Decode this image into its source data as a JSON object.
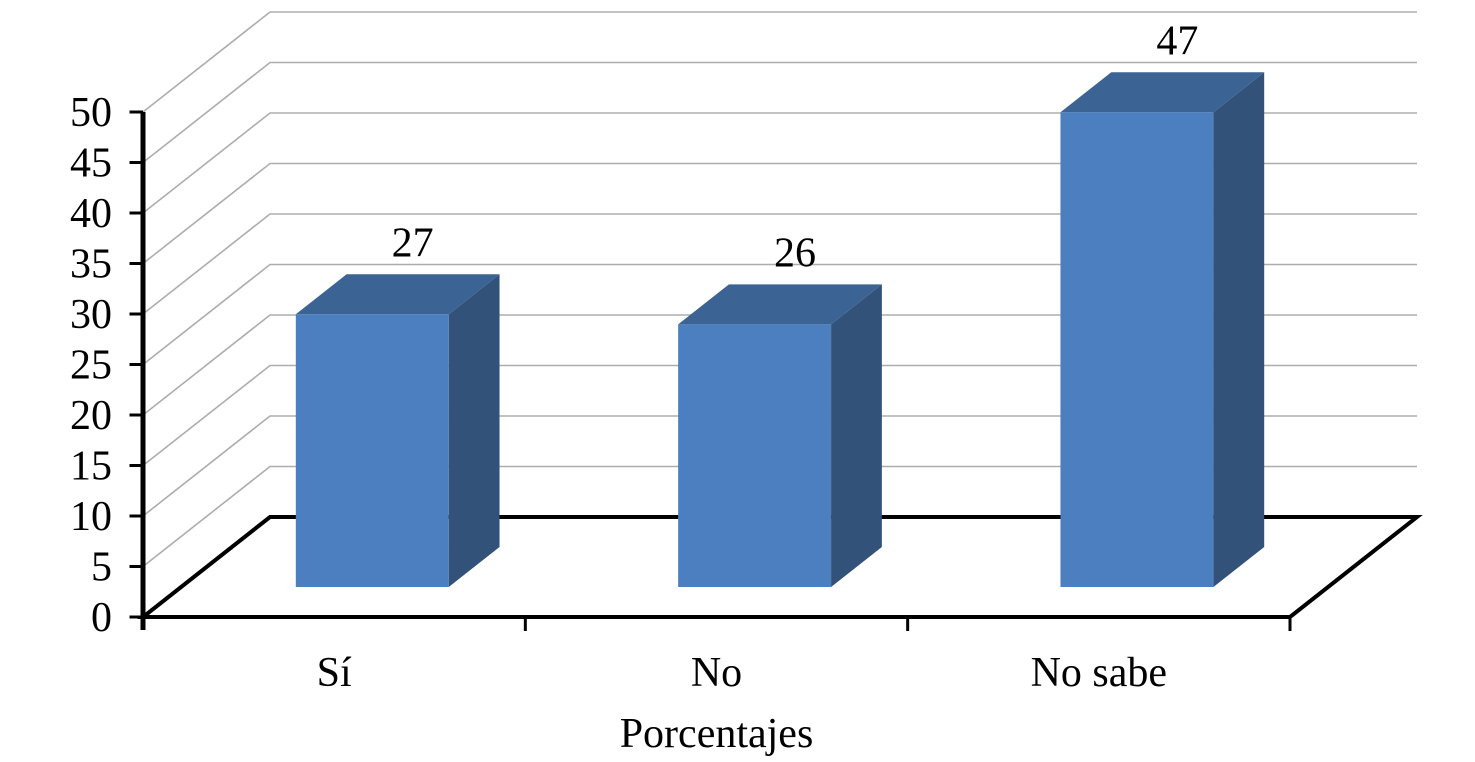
{
  "chart_data": {
    "type": "bar",
    "variant": "3d-column",
    "title": "",
    "xlabel": "Porcentajes",
    "ylabel": "",
    "categories": [
      "Sí",
      "No",
      "No sabe"
    ],
    "series": [
      {
        "name": "Porcentajes",
        "values": [
          27,
          26,
          47
        ]
      }
    ],
    "data_labels": [
      "27",
      "26",
      "47"
    ],
    "ylim": [
      0,
      50
    ],
    "ytick_step": 5,
    "ytick_labels": [
      "0",
      "5",
      "10",
      "15",
      "20",
      "25",
      "30",
      "35",
      "40",
      "45",
      "50"
    ],
    "grid": true,
    "legend_position": "none"
  },
  "colors": {
    "background": "#FFFFFF",
    "bar_front": "#4B7FC0",
    "bar_top": "#3B6494",
    "bar_side": "#32527A",
    "gridline": "#ADADAD",
    "axis": "#000000",
    "text": "#000000"
  }
}
